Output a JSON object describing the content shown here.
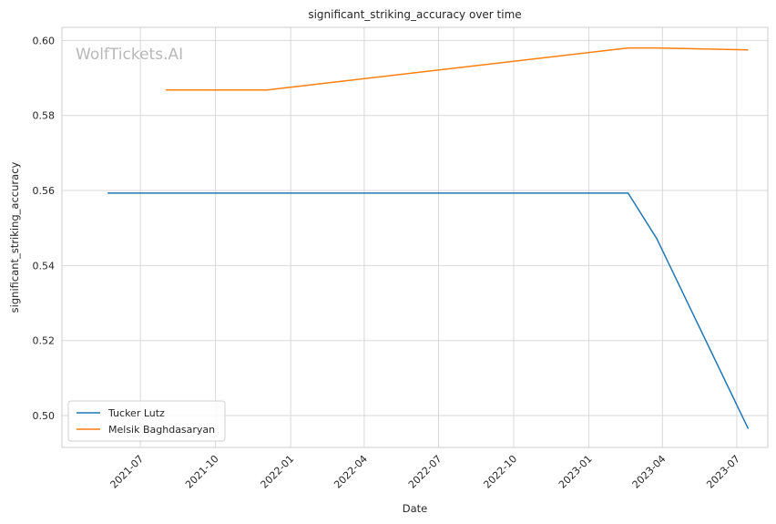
{
  "chart_data": {
    "type": "line",
    "title": "significant_striking_accuracy over time",
    "xlabel": "Date",
    "ylabel": "significant_striking_accuracy",
    "watermark": "WolfTickets.AI",
    "xlim": [
      "2021-03-27",
      "2023-08-08"
    ],
    "ylim": [
      0.4915,
      0.6035
    ],
    "x_ticks": [
      {
        "value": "2021-07-01",
        "label": "2021-07"
      },
      {
        "value": "2021-10-01",
        "label": "2021-10"
      },
      {
        "value": "2022-01-01",
        "label": "2022-01"
      },
      {
        "value": "2022-04-01",
        "label": "2022-04"
      },
      {
        "value": "2022-07-01",
        "label": "2022-07"
      },
      {
        "value": "2022-10-01",
        "label": "2022-10"
      },
      {
        "value": "2023-01-01",
        "label": "2023-01"
      },
      {
        "value": "2023-04-01",
        "label": "2023-04"
      },
      {
        "value": "2023-07-01",
        "label": "2023-07"
      }
    ],
    "y_ticks": [
      {
        "value": 0.5,
        "label": "0.50"
      },
      {
        "value": 0.52,
        "label": "0.52"
      },
      {
        "value": 0.54,
        "label": "0.54"
      },
      {
        "value": 0.56,
        "label": "0.56"
      },
      {
        "value": 0.58,
        "label": "0.58"
      },
      {
        "value": 0.6,
        "label": "0.60"
      }
    ],
    "grid": true,
    "legend_position": "lower-left",
    "series": [
      {
        "name": "Tucker Lutz",
        "color": "#1f77b4",
        "points": [
          {
            "x": "2021-05-22",
            "y": 0.5593
          },
          {
            "x": "2023-02-18",
            "y": 0.5593
          },
          {
            "x": "2023-03-25",
            "y": 0.5472
          },
          {
            "x": "2023-07-15",
            "y": 0.4965
          }
        ]
      },
      {
        "name": "Melsik Baghdasaryan",
        "color": "#ff7f0e",
        "points": [
          {
            "x": "2021-08-01",
            "y": 0.5868
          },
          {
            "x": "2021-12-03",
            "y": 0.5868
          },
          {
            "x": "2023-02-18",
            "y": 0.598
          },
          {
            "x": "2023-03-25",
            "y": 0.598
          },
          {
            "x": "2023-07-15",
            "y": 0.5975
          }
        ]
      }
    ]
  }
}
